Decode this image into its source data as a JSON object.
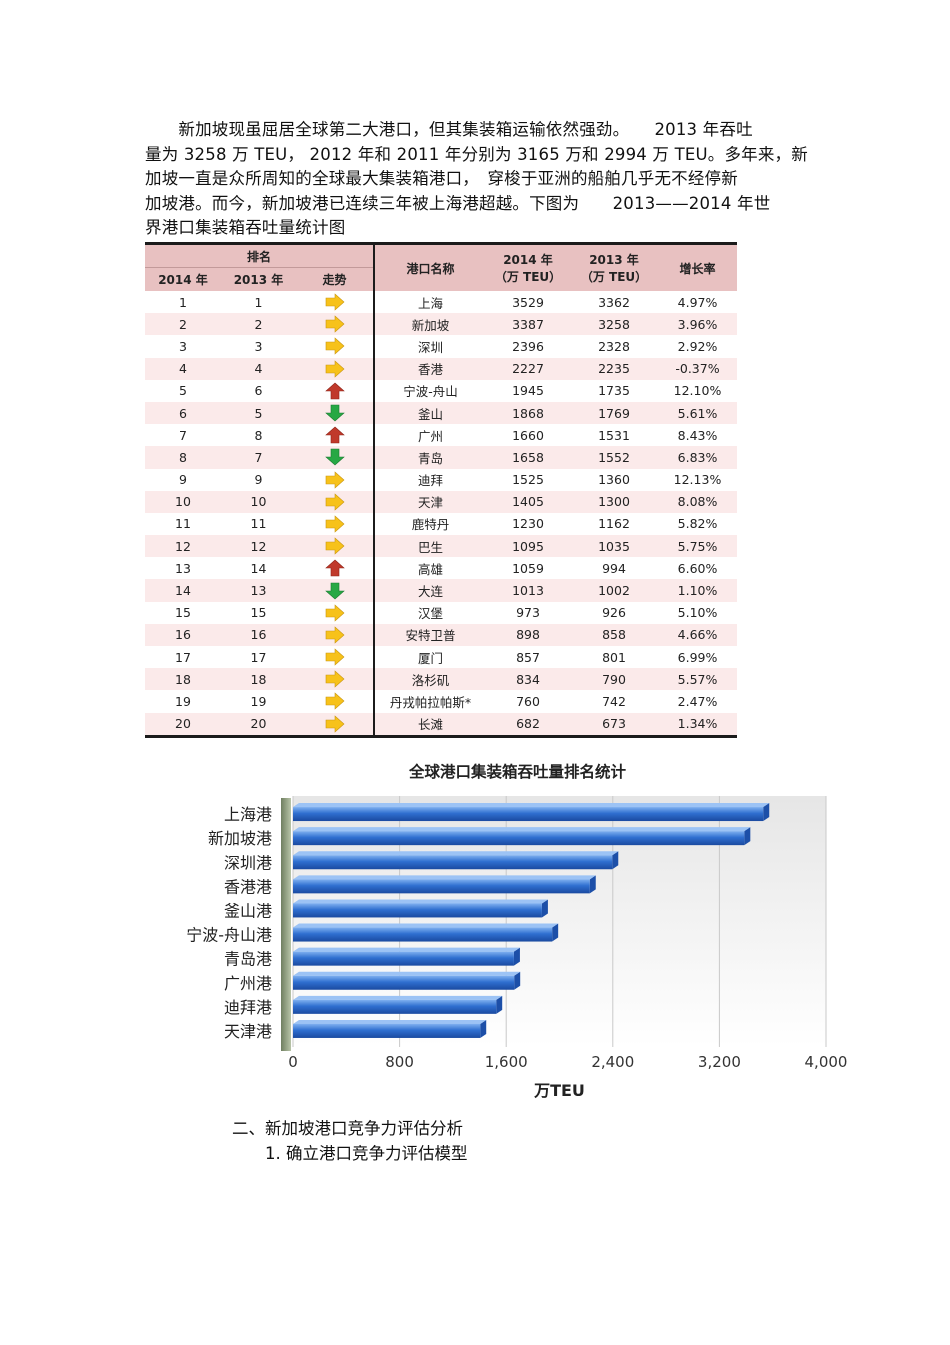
{
  "paragraph": {
    "lines": [
      "　　新加坡现虽屈居全球第二大港口，但其集装箱运输依然强劲。　　2013 年吞吐",
      "量为 3258 万 TEU， 2012 年和 2011 年分别为 3165 万和 2994 万 TEU。多年来，新",
      "加坡一直是众所周知的全球最大集装箱港口，　穿梭于亚洲的船舶几乎无不经停新",
      "加坡港。而今，新加坡港已连续三年被上海港超越。下图为　　2013——2014 年世",
      "界港口集装箱吞吐量统计图"
    ]
  },
  "table": {
    "headers": {
      "rank_group": "排名",
      "year2014": "2014 年",
      "year2013": "2013 年",
      "trend": "走势",
      "port": "港口名称",
      "teu2014_line1": "2014 年",
      "teu2014_line2": "（万 TEU）",
      "teu2013_line1": "2013 年",
      "teu2013_line2": "（万 TEU）",
      "growth": "增长率"
    },
    "rows": [
      {
        "r14": "1",
        "r13": "1",
        "trend": "flat",
        "port": "上海",
        "v14": "3529",
        "v13": "3362",
        "growth": "4.97%"
      },
      {
        "r14": "2",
        "r13": "2",
        "trend": "flat",
        "port": "新加坡",
        "v14": "3387",
        "v13": "3258",
        "growth": "3.96%"
      },
      {
        "r14": "3",
        "r13": "3",
        "trend": "flat",
        "port": "深圳",
        "v14": "2396",
        "v13": "2328",
        "growth": "2.92%"
      },
      {
        "r14": "4",
        "r13": "4",
        "trend": "flat",
        "port": "香港",
        "v14": "2227",
        "v13": "2235",
        "growth": "-0.37%"
      },
      {
        "r14": "5",
        "r13": "6",
        "trend": "up",
        "port": "宁波-舟山",
        "v14": "1945",
        "v13": "1735",
        "growth": "12.10%"
      },
      {
        "r14": "6",
        "r13": "5",
        "trend": "down",
        "port": "釜山",
        "v14": "1868",
        "v13": "1769",
        "growth": "5.61%"
      },
      {
        "r14": "7",
        "r13": "8",
        "trend": "up",
        "port": "广州",
        "v14": "1660",
        "v13": "1531",
        "growth": "8.43%"
      },
      {
        "r14": "8",
        "r13": "7",
        "trend": "down",
        "port": "青岛",
        "v14": "1658",
        "v13": "1552",
        "growth": "6.83%"
      },
      {
        "r14": "9",
        "r13": "9",
        "trend": "flat",
        "port": "迪拜",
        "v14": "1525",
        "v13": "1360",
        "growth": "12.13%"
      },
      {
        "r14": "10",
        "r13": "10",
        "trend": "flat",
        "port": "天津",
        "v14": "1405",
        "v13": "1300",
        "growth": "8.08%"
      },
      {
        "r14": "11",
        "r13": "11",
        "trend": "flat",
        "port": "鹿特丹",
        "v14": "1230",
        "v13": "1162",
        "growth": "5.82%"
      },
      {
        "r14": "12",
        "r13": "12",
        "trend": "flat",
        "port": "巴生",
        "v14": "1095",
        "v13": "1035",
        "growth": "5.75%"
      },
      {
        "r14": "13",
        "r13": "14",
        "trend": "up",
        "port": "高雄",
        "v14": "1059",
        "v13": "994",
        "growth": "6.60%"
      },
      {
        "r14": "14",
        "r13": "13",
        "trend": "down",
        "port": "大连",
        "v14": "1013",
        "v13": "1002",
        "growth": "1.10%"
      },
      {
        "r14": "15",
        "r13": "15",
        "trend": "flat",
        "port": "汉堡",
        "v14": "973",
        "v13": "926",
        "growth": "5.10%"
      },
      {
        "r14": "16",
        "r13": "16",
        "trend": "flat",
        "port": "安特卫普",
        "v14": "898",
        "v13": "858",
        "growth": "4.66%"
      },
      {
        "r14": "17",
        "r13": "17",
        "trend": "flat",
        "port": "厦门",
        "v14": "857",
        "v13": "801",
        "growth": "6.99%"
      },
      {
        "r14": "18",
        "r13": "18",
        "trend": "flat",
        "port": "洛杉矶",
        "v14": "834",
        "v13": "790",
        "growth": "5.57%"
      },
      {
        "r14": "19",
        "r13": "19",
        "trend": "flat",
        "port": "丹戎帕拉帕斯*",
        "v14": "760",
        "v13": "742",
        "growth": "2.47%"
      },
      {
        "r14": "20",
        "r13": "20",
        "trend": "flat",
        "port": "长滩",
        "v14": "682",
        "v13": "673",
        "growth": "1.34%"
      }
    ],
    "trend_colors": {
      "flat": "#f7c21a",
      "up": "#c0392b",
      "down": "#27a844"
    }
  },
  "chart_data": {
    "type": "bar",
    "orientation": "horizontal",
    "title": "全球港口集装箱吞吐量排名统计",
    "xlabel": "万TEU",
    "ylabel": "",
    "categories": [
      "上海港",
      "新加坡港",
      "深圳港",
      "香港港",
      "釜山港",
      "宁波-舟山港",
      "青岛港",
      "广州港",
      "迪拜港",
      "天津港"
    ],
    "values": [
      3529,
      3387,
      2396,
      2227,
      1868,
      1945,
      1658,
      1660,
      1525,
      1405
    ],
    "xlim": [
      0,
      4000
    ],
    "xticks": [
      "0",
      "800",
      "1,600",
      "2,400",
      "3,200",
      "4,000"
    ],
    "grid": true,
    "bar_color": "#2f6fd0"
  },
  "sections": {
    "heading2": "二、新加坡港口竞争力评估分析",
    "heading3": "1. 确立港口竞争力评估模型"
  }
}
